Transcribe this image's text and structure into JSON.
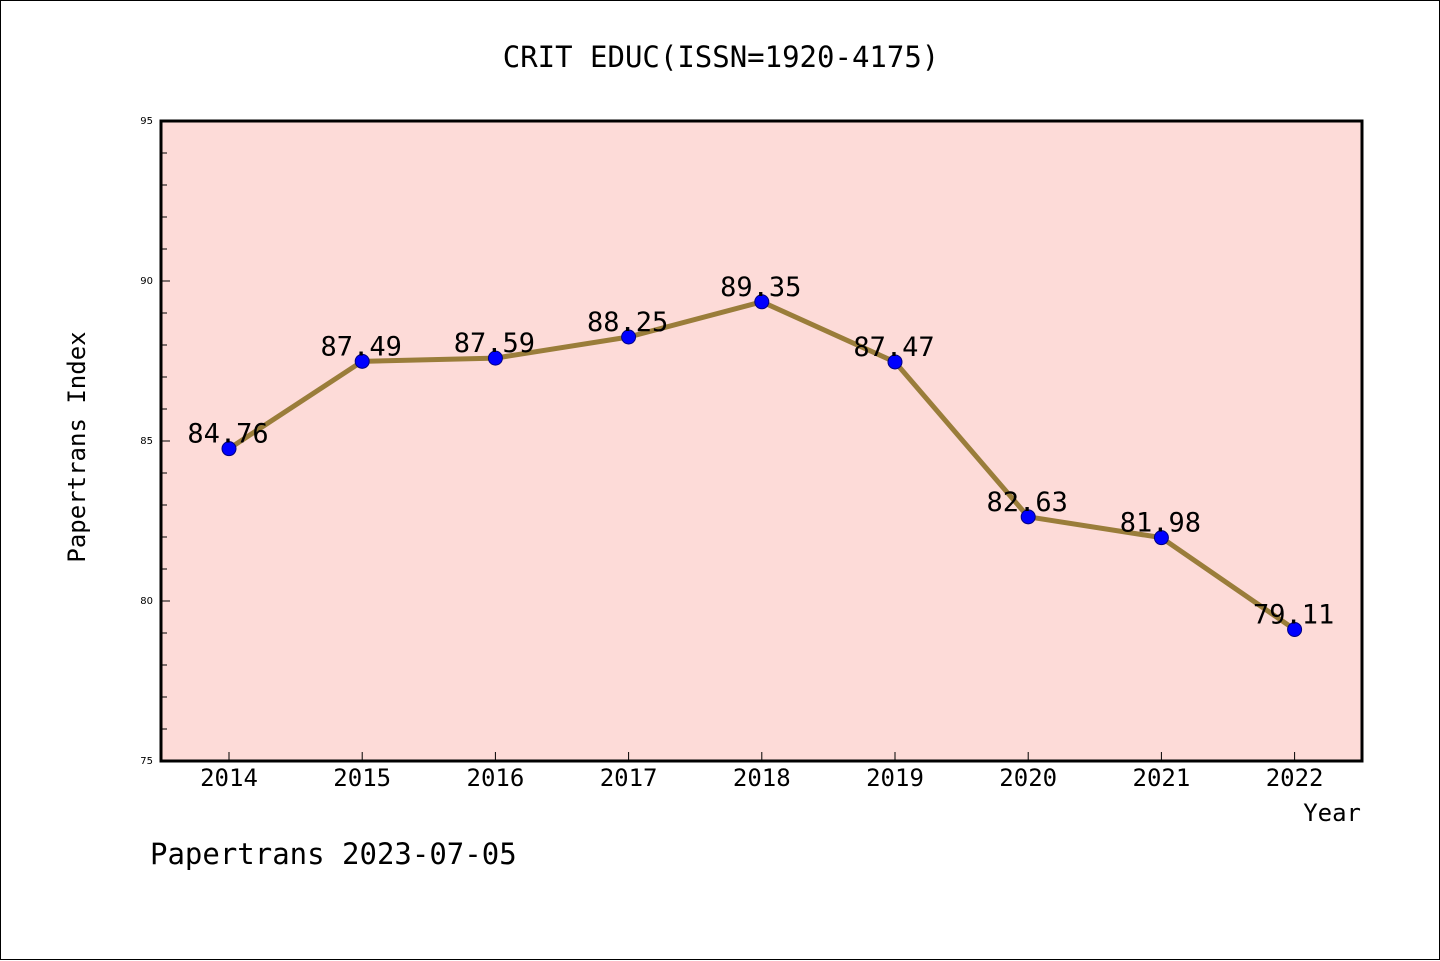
{
  "chart_data": {
    "type": "line",
    "title": "CRIT EDUC(ISSN=1920-4175)",
    "xlabel": "Year",
    "ylabel": "Papertrans Index",
    "x": [
      "2014",
      "2015",
      "2016",
      "2017",
      "2018",
      "2019",
      "2020",
      "2021",
      "2022"
    ],
    "series": [
      {
        "values": [
          84.76,
          87.49,
          87.59,
          88.25,
          89.35,
          87.47,
          82.63,
          81.98,
          79.11
        ],
        "labels": [
          "84.76",
          "87.49",
          "87.59",
          "88.25",
          "89.35",
          "87.47",
          "82.63",
          "81.98",
          "79.11"
        ]
      }
    ],
    "ylim": [
      75,
      95
    ],
    "yticks": [
      "75",
      "80",
      "85",
      "90",
      "95"
    ],
    "grid": false,
    "legend": "none",
    "colors": {
      "plot_background": "#fddbd8",
      "line": "#9a7d3a",
      "marker": "#0000ff",
      "marker_edge": "#000080"
    }
  },
  "footer": {
    "text": "Papertrans 2023-07-05"
  }
}
